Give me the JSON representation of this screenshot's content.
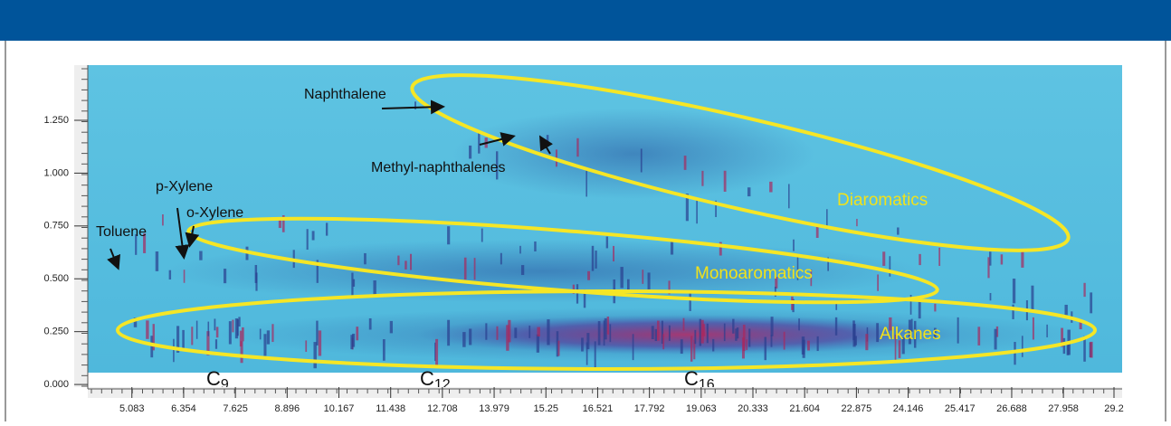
{
  "chart_data": {
    "type": "heatmap",
    "xlim": [
      4.0,
      29.4
    ],
    "xticks": [
      5.083,
      6.354,
      7.625,
      8.896,
      10.167,
      11.438,
      12.708,
      13.979,
      15.25,
      16.521,
      17.792,
      19.063,
      20.333,
      21.604,
      22.875,
      24.146,
      25.417,
      26.688,
      27.958,
      29.2
    ],
    "ylim": [
      -0.021,
      1.511
    ],
    "yticks": [
      {
        "value": 0,
        "label": "0.000"
      },
      {
        "value": 0.25,
        "label": "0.250"
      },
      {
        "value": 0.5,
        "label": "0.500"
      },
      {
        "value": 0.75,
        "label": "0.750"
      },
      {
        "value": 1,
        "label": "1.000"
      },
      {
        "value": 1.25,
        "label": "1.250"
      }
    ],
    "annotations": [
      "Naphthalene",
      "Methyl-naphthalenes",
      "p-Xylene",
      "o-Xylene",
      "Toluene"
    ],
    "groups": [
      "Diaromatics",
      "Monoaromatics",
      "Alkanes"
    ],
    "carbon_markers": [
      {
        "atom": "C",
        "count": "9"
      },
      {
        "atom": "C",
        "count": "12"
      },
      {
        "atom": "C",
        "count": "16"
      }
    ]
  }
}
